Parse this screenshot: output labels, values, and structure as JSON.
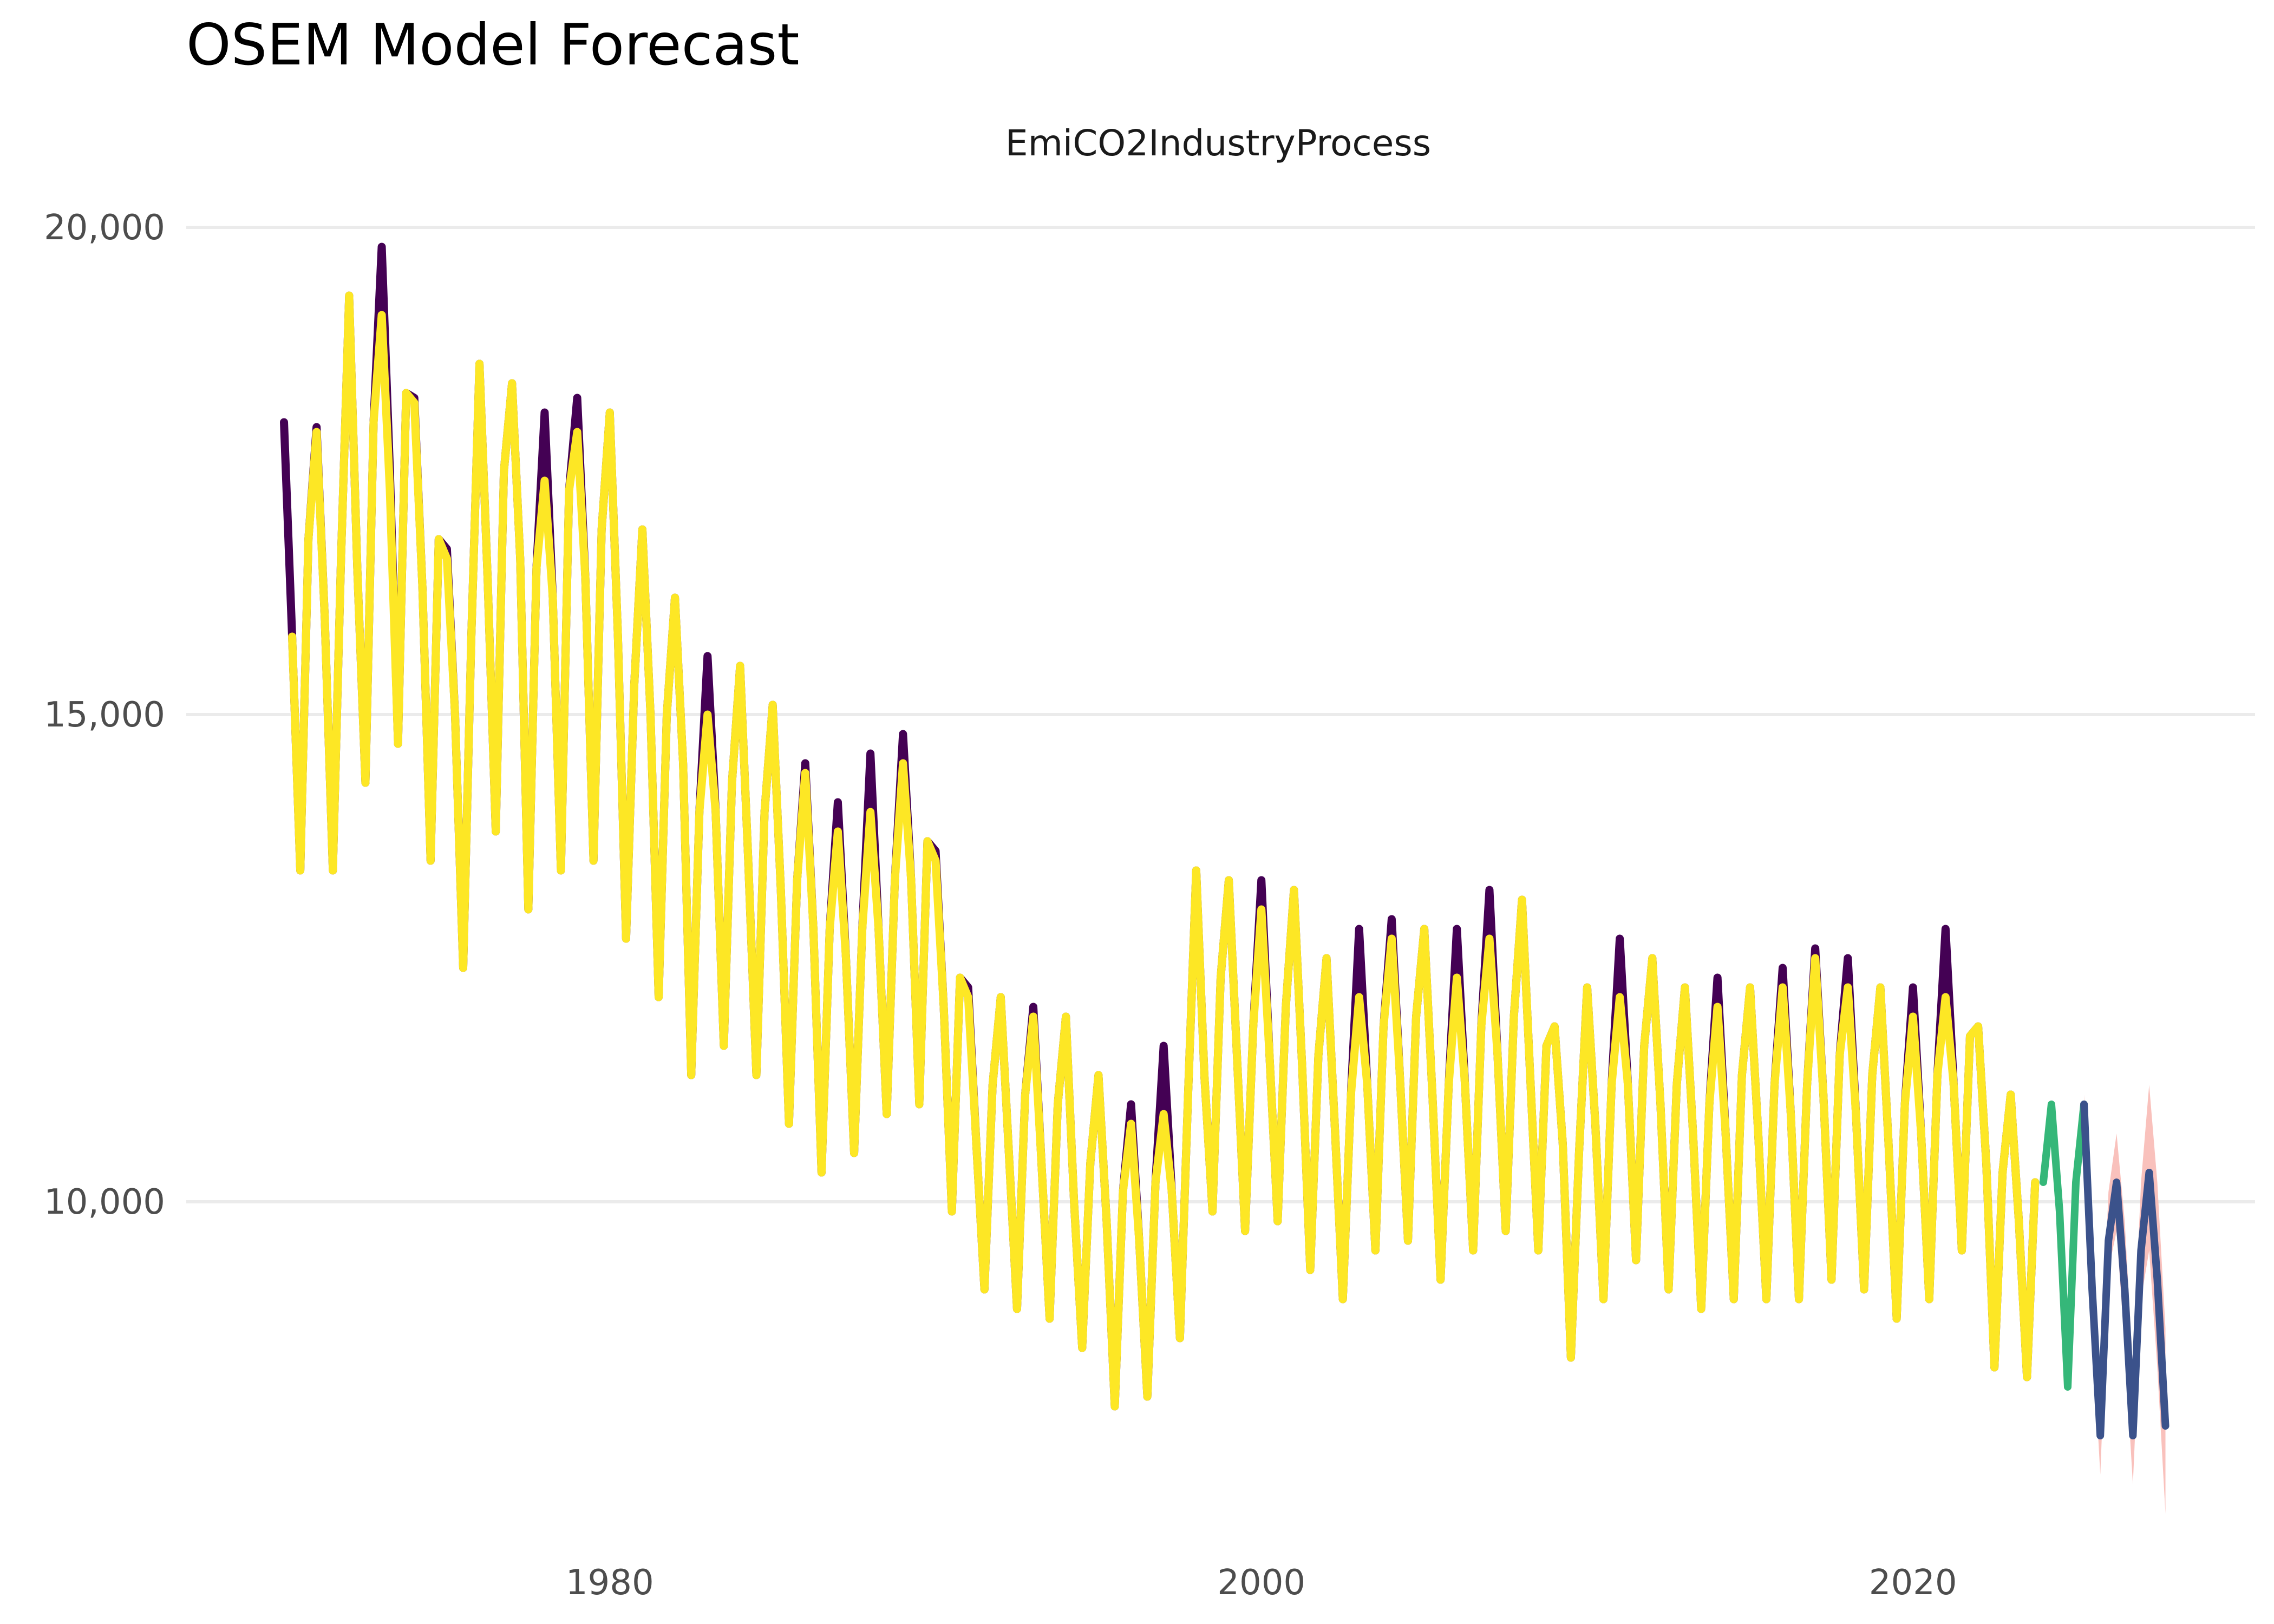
{
  "title": "OSEM Model Forecast",
  "chart_data": {
    "type": "line",
    "title": "OSEM Model Forecast",
    "facet_label": "EmiCO2IndustryProcess",
    "xlabel": "",
    "ylabel": "",
    "xlim": [
      1967.0,
      2030.5
    ],
    "ylim": [
      6500,
      20500
    ],
    "y_ticks": [
      10000,
      15000,
      20000
    ],
    "y_tick_labels": [
      "10,000",
      "15,000",
      "20,000"
    ],
    "x_ticks": [
      1980,
      2000,
      2020
    ],
    "x_tick_labels": [
      "1980",
      "2000",
      "2020"
    ],
    "grid": "horizontal major only",
    "legend": "none",
    "colors": {
      "observed": "#440154",
      "fitted": "#fde725",
      "test": "#35b779",
      "forecast": "#3b528b",
      "interval": "#f8b6b0",
      "grid": "#ebebeb"
    },
    "series": [
      {
        "role": "observed",
        "x": [
          1970.0,
          1970.25,
          1970.5,
          1970.75,
          1971.0,
          1971.25,
          1971.5,
          1971.75,
          1972.0,
          1972.25,
          1972.5,
          1972.75,
          1973.0,
          1973.25,
          1973.5,
          1973.75,
          1974.0,
          1974.25,
          1974.5,
          1974.75,
          1975.0,
          1975.25,
          1975.5,
          1975.75,
          1976.0,
          1976.25,
          1976.5,
          1976.75,
          1977.0,
          1977.25,
          1977.5,
          1977.75,
          1978.0,
          1978.25,
          1978.5,
          1978.75,
          1979.0,
          1979.25,
          1979.5,
          1979.75,
          1980.0,
          1980.25,
          1980.5,
          1980.75,
          1981.0,
          1981.25,
          1981.5,
          1981.75,
          1982.0,
          1982.25,
          1982.5,
          1982.75,
          1983.0,
          1983.25,
          1983.5,
          1983.75,
          1984.0,
          1984.25,
          1984.5,
          1984.75,
          1985.0,
          1985.25,
          1985.5,
          1985.75,
          1986.0,
          1986.25,
          1986.5,
          1986.75,
          1987.0,
          1987.25,
          1987.5,
          1987.75,
          1988.0,
          1988.25,
          1988.5,
          1988.75,
          1989.0,
          1989.25,
          1989.5,
          1989.75,
          1990.0,
          1990.25,
          1990.5,
          1990.75,
          1991.0,
          1991.25,
          1991.5,
          1991.75,
          1992.0,
          1992.25,
          1992.5,
          1992.75,
          1993.0,
          1993.25,
          1993.5,
          1993.75,
          1994.0,
          1994.25,
          1994.5,
          1994.75,
          1995.0,
          1995.25,
          1995.5,
          1995.75,
          1996.0,
          1996.25,
          1996.5,
          1996.75,
          1997.0,
          1997.25,
          1997.5,
          1997.75,
          1998.0,
          1998.25,
          1998.5,
          1998.75,
          1999.0,
          1999.25,
          1999.5,
          1999.75,
          2000.0,
          2000.25,
          2000.5,
          2000.75,
          2001.0,
          2001.25,
          2001.5,
          2001.75,
          2002.0,
          2002.25,
          2002.5,
          2002.75,
          2003.0,
          2003.25,
          2003.5,
          2003.75,
          2004.0,
          2004.25,
          2004.5,
          2004.75,
          2005.0,
          2005.25,
          2005.5,
          2005.75,
          2006.0,
          2006.25,
          2006.5,
          2006.75,
          2007.0,
          2007.25,
          2007.5,
          2007.75,
          2008.0,
          2008.25,
          2008.5,
          2008.75,
          2009.0,
          2009.25,
          2009.5,
          2009.75,
          2010.0,
          2010.25,
          2010.5,
          2010.75,
          2011.0,
          2011.25,
          2011.5,
          2011.75,
          2012.0,
          2012.25,
          2012.5,
          2012.75,
          2013.0,
          2013.25,
          2013.5,
          2013.75,
          2014.0,
          2014.25,
          2014.5,
          2014.75,
          2015.0,
          2015.25,
          2015.5,
          2015.75,
          2016.0,
          2016.25,
          2016.5,
          2016.75,
          2017.0,
          2017.25,
          2017.5,
          2017.75,
          2018.0,
          2018.25,
          2018.5,
          2018.75,
          2019.0,
          2019.25,
          2019.5,
          2019.75,
          2020.0,
          2020.25,
          2020.5,
          2020.75,
          2021.0,
          2021.25,
          2021.5,
          2021.75,
          2022.0,
          2022.25,
          2022.5,
          2022.75,
          2023.0,
          2023.25,
          2023.5,
          2023.75
        ],
        "values": [
          18000,
          15800,
          13400,
          16800,
          17950,
          16000,
          13400,
          16600,
          19300,
          16500,
          14300,
          18000,
          19800,
          17500,
          14700,
          18300,
          18250,
          16300,
          13500,
          16800,
          16700,
          15000,
          12400,
          15800,
          18600,
          16400,
          13800,
          17500,
          18400,
          16600,
          13000,
          16500,
          18100,
          16200,
          13400,
          17300,
          18250,
          16400,
          13500,
          16900,
          18100,
          15800,
          12700,
          15300,
          16900,
          15000,
          12100,
          15000,
          16200,
          14500,
          11300,
          14000,
          15600,
          14000,
          11600,
          14300,
          15500,
          13500,
          11300,
          14000,
          15100,
          13200,
          10800,
          13300,
          14500,
          12800,
          10300,
          12800,
          14100,
          12500,
          10500,
          12800,
          14600,
          12800,
          10900,
          13300,
          14800,
          13300,
          11000,
          13700,
          13600,
          12000,
          9900,
          12300,
          12200,
          10600,
          9100,
          11200,
          12100,
          10500,
          8900,
          11100,
          12000,
          10400,
          8800,
          11000,
          11900,
          10000,
          8500,
          10400,
          11300,
          9800,
          7900,
          10100,
          11000,
          9600,
          8000,
          10200,
          11600,
          10100,
          8600,
          11100,
          13400,
          11300,
          9900,
          12300,
          13300,
          11500,
          9700,
          11800,
          13300,
          11500,
          9800,
          12000,
          13200,
          11400,
          9300,
          11500,
          12500,
          10800,
          9000,
          11100,
          12800,
          11200,
          9500,
          11800,
          12900,
          11300,
          9600,
          11900,
          12800,
          11100,
          9200,
          11200,
          12800,
          11200,
          9500,
          11800,
          13200,
          11500,
          9700,
          11900,
          13100,
          11300,
          9500,
          11600,
          11800,
          10600,
          8400,
          10500,
          12200,
          10800,
          9000,
          11200,
          12700,
          11200,
          9400,
          11600,
          12500,
          11000,
          9100,
          11200,
          12200,
          10700,
          8900,
          11000,
          12300,
          10700,
          9000,
          11300,
          12200,
          10700,
          9000,
          11200,
          12400,
          10900,
          9000,
          11200,
          12600,
          11100,
          9200,
          11500,
          12500,
          10900,
          9100,
          11300,
          12200,
          10600,
          8800,
          11000,
          12200,
          10700,
          9000,
          11300,
          12800,
          11200,
          9500,
          11700,
          11800,
          10400,
          8300,
          10300,
          11100,
          9800,
          8200,
          10200
        ]
      },
      {
        "role": "fitted",
        "x": [
          1970.25,
          1970.5,
          1970.75,
          1971.0,
          1971.25,
          1971.5,
          1971.75,
          1972.0,
          1972.25,
          1972.5,
          1972.75,
          1973.0,
          1973.25,
          1973.5,
          1973.75,
          1974.0,
          1974.25,
          1974.5,
          1974.75,
          1975.0,
          1975.25,
          1975.5,
          1975.75,
          1976.0,
          1976.25,
          1976.5,
          1976.75,
          1977.0,
          1977.25,
          1977.5,
          1977.75,
          1978.0,
          1978.25,
          1978.5,
          1978.75,
          1979.0,
          1979.25,
          1979.5,
          1979.75,
          1980.0,
          1980.25,
          1980.5,
          1980.75,
          1981.0,
          1981.25,
          1981.5,
          1981.75,
          1982.0,
          1982.25,
          1982.5,
          1982.75,
          1983.0,
          1983.25,
          1983.5,
          1983.75,
          1984.0,
          1984.25,
          1984.5,
          1984.75,
          1985.0,
          1985.25,
          1985.5,
          1985.75,
          1986.0,
          1986.25,
          1986.5,
          1986.75,
          1987.0,
          1987.25,
          1987.5,
          1987.75,
          1988.0,
          1988.25,
          1988.5,
          1988.75,
          1989.0,
          1989.25,
          1989.5,
          1989.75,
          1990.0,
          1990.25,
          1990.5,
          1990.75,
          1991.0,
          1991.25,
          1991.5,
          1991.75,
          1992.0,
          1992.25,
          1992.5,
          1992.75,
          1993.0,
          1993.25,
          1993.5,
          1993.75,
          1994.0,
          1994.25,
          1994.5,
          1994.75,
          1995.0,
          1995.25,
          1995.5,
          1995.75,
          1996.0,
          1996.25,
          1996.5,
          1996.75,
          1997.0,
          1997.25,
          1997.5,
          1997.75,
          1998.0,
          1998.25,
          1998.5,
          1998.75,
          1999.0,
          1999.25,
          1999.5,
          1999.75,
          2000.0,
          2000.25,
          2000.5,
          2000.75,
          2001.0,
          2001.25,
          2001.5,
          2001.75,
          2002.0,
          2002.25,
          2002.5,
          2002.75,
          2003.0,
          2003.25,
          2003.5,
          2003.75,
          2004.0,
          2004.25,
          2004.5,
          2004.75,
          2005.0,
          2005.25,
          2005.5,
          2005.75,
          2006.0,
          2006.25,
          2006.5,
          2006.75,
          2007.0,
          2007.25,
          2007.5,
          2007.75,
          2008.0,
          2008.25,
          2008.5,
          2008.75,
          2009.0,
          2009.25,
          2009.5,
          2009.75,
          2010.0,
          2010.25,
          2010.5,
          2010.75,
          2011.0,
          2011.25,
          2011.5,
          2011.75,
          2012.0,
          2012.25,
          2012.5,
          2012.75,
          2013.0,
          2013.25,
          2013.5,
          2013.75,
          2014.0,
          2014.25,
          2014.5,
          2014.75,
          2015.0,
          2015.25,
          2015.5,
          2015.75,
          2016.0,
          2016.25,
          2016.5,
          2016.75,
          2017.0,
          2017.25,
          2017.5,
          2017.75,
          2018.0,
          2018.25,
          2018.5,
          2018.75,
          2019.0,
          2019.25,
          2019.5,
          2019.75,
          2020.0,
          2020.25,
          2020.5,
          2020.75,
          2021.0,
          2021.25,
          2021.5,
          2021.75,
          2022.0,
          2022.25,
          2022.5,
          2022.75,
          2023.0,
          2023.25,
          2023.5,
          2023.75
        ],
        "values": [
          15800,
          13400,
          16800,
          17900,
          16000,
          13400,
          16600,
          19300,
          16500,
          14300,
          18000,
          19100,
          17300,
          14700,
          18300,
          18200,
          16300,
          13500,
          16800,
          16600,
          15000,
          12400,
          15800,
          18600,
          16400,
          13800,
          17500,
          18400,
          16600,
          13000,
          16500,
          17400,
          16200,
          13400,
          17300,
          17900,
          16400,
          13500,
          16900,
          18100,
          15800,
          12700,
          15300,
          16900,
          15000,
          12100,
          15000,
          16200,
          14500,
          11300,
          14000,
          15000,
          14000,
          11600,
          14300,
          15500,
          13500,
          11300,
          14000,
          15100,
          13200,
          10800,
          13300,
          14400,
          12800,
          10300,
          12800,
          13800,
          12500,
          10500,
          12800,
          14000,
          12800,
          10900,
          13300,
          14500,
          13300,
          11000,
          13700,
          13500,
          12000,
          9900,
          12300,
          12100,
          10600,
          9100,
          11200,
          12100,
          10500,
          8900,
          11100,
          11900,
          10400,
          8800,
          11000,
          11900,
          10000,
          8500,
          10400,
          11300,
          9800,
          7900,
          10100,
          10800,
          9600,
          8000,
          10200,
          10900,
          10100,
          8600,
          11100,
          13400,
          11300,
          9900,
          12300,
          13300,
          11500,
          9700,
          11800,
          13000,
          11500,
          9800,
          12000,
          13200,
          11400,
          9300,
          11500,
          12500,
          10800,
          9000,
          11100,
          12100,
          11200,
          9500,
          11800,
          12700,
          11300,
          9600,
          11900,
          12800,
          11100,
          9200,
          11200,
          12300,
          11200,
          9500,
          11800,
          12700,
          11500,
          9700,
          11900,
          13100,
          11300,
          9500,
          11600,
          11800,
          10600,
          8400,
          10500,
          12200,
          10800,
          9000,
          11200,
          12100,
          11200,
          9400,
          11600,
          12500,
          11000,
          9100,
          11200,
          12200,
          10700,
          8900,
          11000,
          12000,
          10700,
          9000,
          11300,
          12200,
          10700,
          9000,
          11200,
          12200,
          10900,
          9000,
          11200,
          12500,
          11100,
          9200,
          11500,
          12200,
          10900,
          9100,
          11300,
          12200,
          10600,
          8800,
          11000,
          11900,
          10700,
          9000,
          11300,
          12100,
          11200,
          9500,
          11700,
          11800,
          10400,
          8300,
          10300,
          11100,
          9800,
          8200,
          10200
        ]
      },
      {
        "role": "test",
        "x": [
          2024.0,
          2024.25,
          2024.5,
          2024.75,
          2025.0,
          2025.25
        ],
        "values": [
          10200,
          11000,
          9900,
          8100,
          10200,
          11000
        ]
      },
      {
        "role": "forecast",
        "x": [
          2025.25,
          2025.5,
          2025.75,
          2026.0,
          2026.25,
          2026.5,
          2026.75,
          2027.0,
          2027.25,
          2027.5,
          2027.75
        ],
        "values": [
          11000,
          9100,
          7600,
          9600,
          10200,
          9100,
          7600,
          9500,
          10300,
          9200,
          7700
        ]
      }
    ],
    "interval": {
      "x": [
        2025.25,
        2025.5,
        2025.75,
        2026.0,
        2026.25,
        2026.5,
        2026.75,
        2027.0,
        2027.25,
        2027.5,
        2027.75
      ],
      "lower": [
        10900,
        8700,
        7200,
        9300,
        9700,
        8500,
        7100,
        9000,
        9500,
        8300,
        6800
      ],
      "upper": [
        11100,
        9600,
        8100,
        10100,
        10700,
        9800,
        8300,
        10200,
        11200,
        10200,
        8700
      ]
    }
  }
}
